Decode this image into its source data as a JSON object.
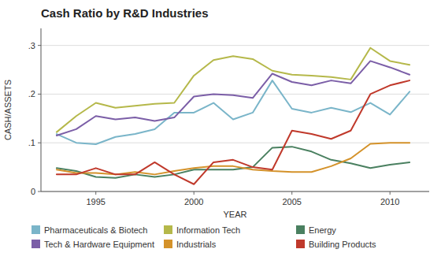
{
  "chart_data": {
    "type": "line",
    "title": "Cash Ratio by R&D Industries",
    "xlabel": "YEAR",
    "ylabel": "CASH/ASSETS",
    "x": [
      1993,
      1994,
      1995,
      1996,
      1997,
      1998,
      1999,
      2000,
      2001,
      2002,
      2003,
      2004,
      2005,
      2006,
      2007,
      2008,
      2009,
      2010,
      2011
    ],
    "series": [
      {
        "name": "Pharmaceuticals & Biotech",
        "color": "#7ab5c9",
        "values": [
          0.118,
          0.1,
          0.097,
          0.112,
          0.118,
          0.128,
          0.162,
          0.162,
          0.182,
          0.148,
          0.162,
          0.228,
          0.17,
          0.162,
          0.172,
          0.163,
          0.182,
          0.158,
          0.205
        ]
      },
      {
        "name": "Information Tech",
        "color": "#b5b84a",
        "values": [
          0.122,
          0.155,
          0.182,
          0.172,
          0.176,
          0.18,
          0.182,
          0.238,
          0.27,
          0.278,
          0.272,
          0.248,
          0.24,
          0.238,
          0.235,
          0.23,
          0.295,
          0.268,
          0.26
        ]
      },
      {
        "name": "Energy",
        "color": "#4a8060",
        "values": [
          0.048,
          0.042,
          0.03,
          0.028,
          0.035,
          0.03,
          0.035,
          0.045,
          0.045,
          0.045,
          0.05,
          0.09,
          0.092,
          0.082,
          0.065,
          0.058,
          0.048,
          0.055,
          0.06
        ]
      },
      {
        "name": "Tech & Hardware Equipment",
        "color": "#7b5ea7",
        "values": [
          0.115,
          0.128,
          0.155,
          0.148,
          0.152,
          0.145,
          0.152,
          0.195,
          0.2,
          0.198,
          0.192,
          0.242,
          0.225,
          0.218,
          0.228,
          0.222,
          0.268,
          0.255,
          0.24
        ]
      },
      {
        "name": "Industrials",
        "color": "#d4922a",
        "values": [
          0.045,
          0.038,
          0.038,
          0.035,
          0.04,
          0.035,
          0.042,
          0.048,
          0.052,
          0.052,
          0.045,
          0.042,
          0.04,
          0.04,
          0.052,
          0.068,
          0.098,
          0.1,
          0.1
        ]
      },
      {
        "name": "Building Products",
        "color": "#c0392b",
        "values": [
          0.035,
          0.035,
          0.048,
          0.035,
          0.035,
          0.06,
          0.035,
          0.015,
          0.06,
          0.065,
          0.05,
          0.045,
          0.125,
          0.118,
          0.108,
          0.125,
          0.2,
          0.218,
          0.228
        ]
      }
    ],
    "xlim": [
      1992.2,
      2012.0
    ],
    "xticks": [
      1995,
      2000,
      2005,
      2010
    ],
    "ylim": [
      0,
      0.335
    ],
    "yticks": [
      0,
      {
        "value": 0.1,
        "label": ".1"
      },
      {
        "value": 0.2,
        "label": ".2"
      },
      {
        "value": 0.3,
        "label": ".3"
      }
    ],
    "grid": true,
    "legend": "bottom"
  }
}
